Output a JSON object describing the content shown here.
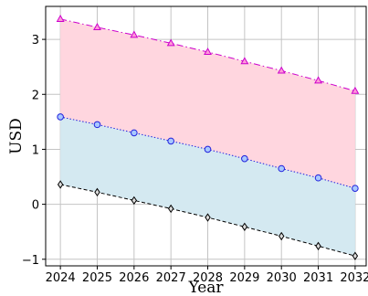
{
  "chart_data": {
    "type": "area",
    "xlabel": "Year",
    "ylabel": "USD",
    "x": [
      2024,
      2025,
      2026,
      2027,
      2028,
      2029,
      2030,
      2031,
      2032
    ],
    "x_tick_labels": [
      "2024",
      "2025",
      "2026",
      "2027",
      "2028",
      "2029",
      "2030",
      "2031",
      "2032"
    ],
    "y_tick_labels": [
      "−1",
      "0",
      "1",
      "2",
      "3"
    ],
    "xlim": [
      2023.6,
      2032.3
    ],
    "ylim": [
      -1.12,
      3.6
    ],
    "grid": true,
    "series": [
      {
        "values": [
          3.37,
          3.22,
          3.08,
          2.93,
          2.77,
          2.6,
          2.43,
          2.25,
          2.06
        ],
        "color": "#cc00cc",
        "marker": "triangle",
        "line_style": "dash-dot"
      },
      {
        "values": [
          1.59,
          1.45,
          1.3,
          1.15,
          1.0,
          0.83,
          0.65,
          0.48,
          0.29
        ],
        "color": "#2222dd",
        "marker": "circle",
        "line_style": "dotted"
      },
      {
        "values": [
          0.36,
          0.22,
          0.07,
          -0.08,
          -0.24,
          -0.41,
          -0.58,
          -0.76,
          -0.94
        ],
        "color": "#000000",
        "marker": "diamond",
        "line_style": "dashed"
      }
    ],
    "fills": [
      {
        "between": [
          0,
          1
        ],
        "color": "#ffd6df"
      },
      {
        "between": [
          1,
          2
        ],
        "color": "#d4e9f1"
      }
    ]
  }
}
